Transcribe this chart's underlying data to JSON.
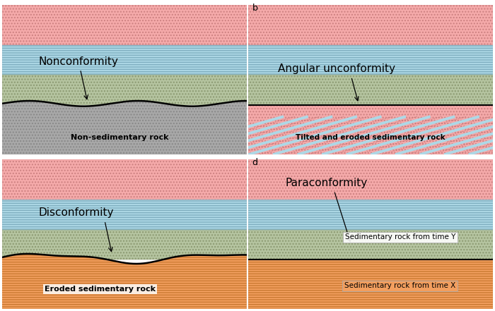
{
  "color_salmon": "#F5AAAA",
  "color_light_blue": "#ADD8E6",
  "color_sage": "#B5C4A0",
  "color_gray": "#A8A8A8",
  "color_orange": "#F4A060",
  "title_a": "Nonconformity",
  "title_b": "Angular unconformity",
  "title_c": "Disconformity",
  "title_d": "Paraconformity",
  "label_a": "Non-sedimentary rock",
  "label_b": "Tilted and eroded sedimentary rock",
  "label_c": "Eroded sedimentary rock",
  "label_d1": "Sedimentary rock from time Y",
  "label_d2": "Sedimentary rock from time X",
  "panel_b": "b",
  "panel_d": "d"
}
